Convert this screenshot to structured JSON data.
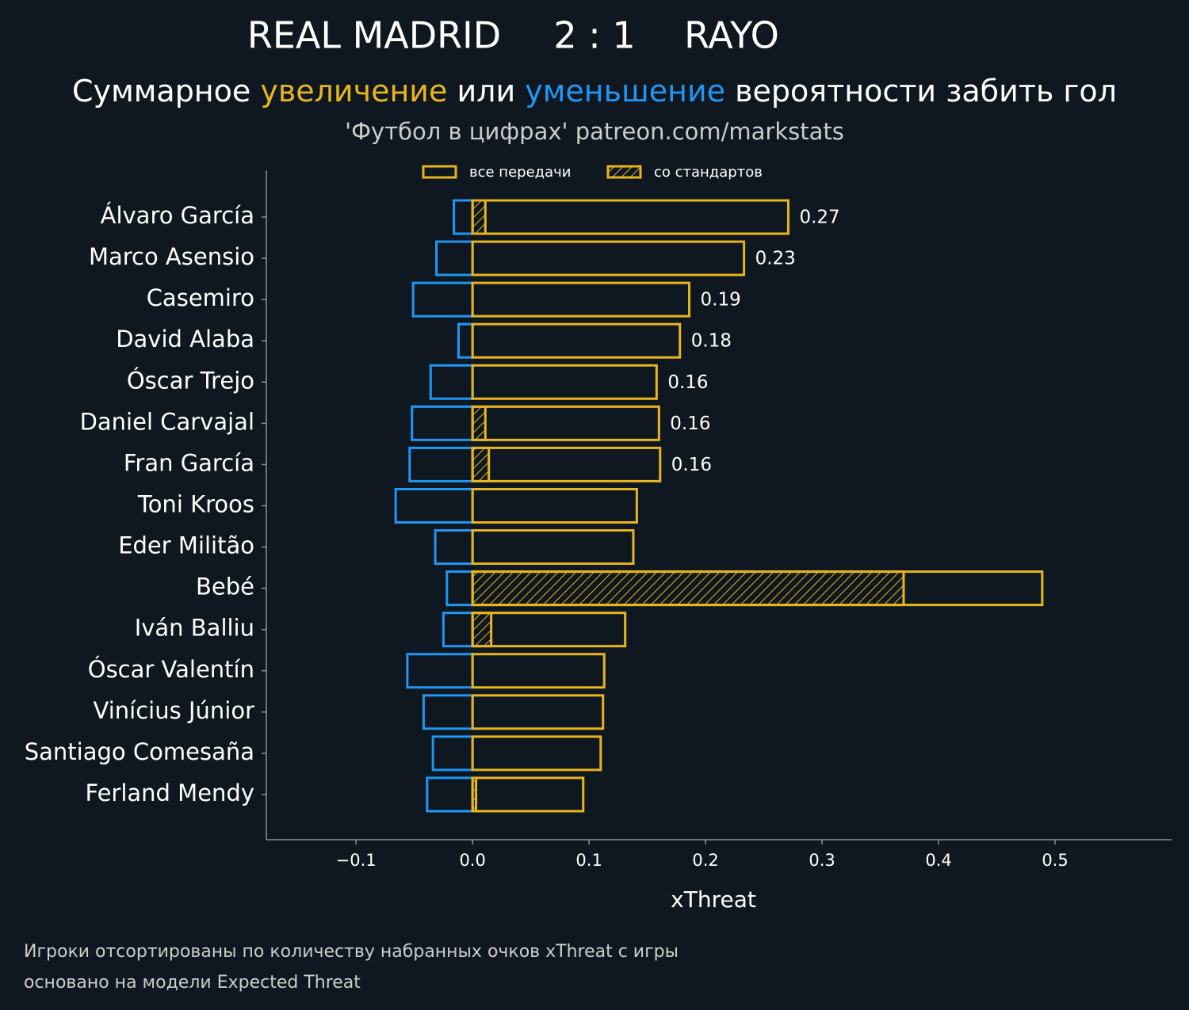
{
  "chart_data": {
    "type": "bar",
    "orientation": "horizontal",
    "title_home": "REAL MADRID",
    "title_score": "2 : 1",
    "title_away": "RAYO",
    "subtitle_parts": [
      {
        "text": "Суммарное ",
        "color": "#ffffff"
      },
      {
        "text": "увеличение",
        "color": "#e6b520"
      },
      {
        "text": " или ",
        "color": "#ffffff"
      },
      {
        "text": "уменьшение",
        "color": "#2196f3"
      },
      {
        "text": " вероятности забить гол",
        "color": "#ffffff"
      }
    ],
    "source": "'Футбол в цифрах' patreon.com/markstats",
    "xlabel": "xThreat",
    "footnotes": [
      "Игроки отсортированы по количеству набранных очков xThreat с игры",
      "основано на модели Expected Threat"
    ],
    "categories": [
      "Álvaro García",
      "Marco Asensio",
      "Casemiro",
      "David Alaba",
      "Óscar Trejo",
      "Daniel Carvajal",
      "Fran García",
      "Toni Kroos",
      "Eder Militão",
      "Bebé",
      "Iván Balliu",
      "Óscar Valentín",
      "Vinícius Júnior",
      "Santiago Comesaña",
      "Ferland Mendy"
    ],
    "series": [
      {
        "name": "все передачи",
        "color": "#e6b520",
        "values": [
          0.271,
          0.233,
          0.186,
          0.178,
          0.158,
          0.16,
          0.161,
          0.141,
          0.138,
          0.489,
          0.131,
          0.113,
          0.112,
          0.11,
          0.095
        ],
        "value_labels": [
          "0.27",
          "0.23",
          "0.19",
          "0.18",
          "0.16",
          "0.16",
          "0.16",
          null,
          null,
          null,
          null,
          null,
          null,
          null,
          null
        ]
      },
      {
        "name": "со стандартов",
        "color": "#e6b520",
        "hatch": true,
        "values": [
          0.011,
          null,
          null,
          null,
          null,
          0.011,
          0.014,
          null,
          null,
          0.37,
          0.016,
          null,
          null,
          null,
          0.003
        ]
      },
      {
        "color": "#2196f3",
        "values": [
          -0.016,
          -0.031,
          -0.051,
          -0.012,
          -0.036,
          -0.052,
          -0.054,
          -0.066,
          -0.032,
          -0.022,
          -0.025,
          -0.056,
          -0.042,
          -0.034,
          -0.039
        ]
      }
    ],
    "xlim": [
      -0.177,
      0.6
    ],
    "xticks": [
      {
        "value": -0.1,
        "label": "−0.1"
      },
      {
        "value": 0,
        "label": "0.0"
      },
      0.1,
      0.2,
      0.3,
      0.4,
      0.5
    ]
  }
}
